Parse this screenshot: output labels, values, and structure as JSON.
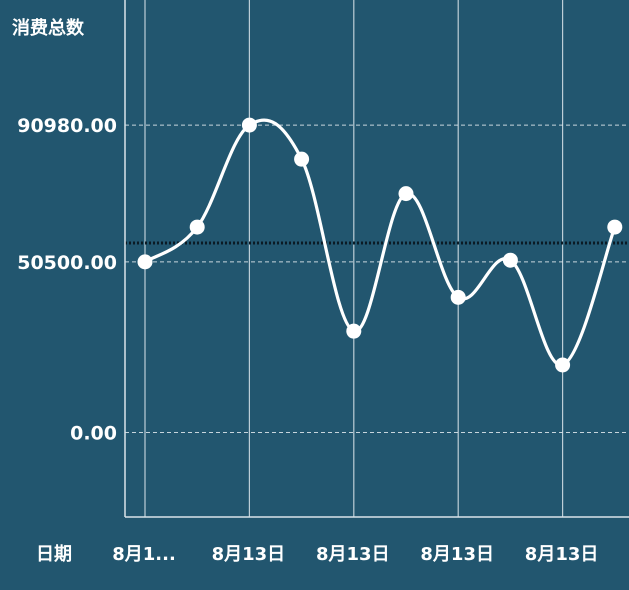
{
  "colors": {
    "background": "#22566f",
    "line": "#ffffff",
    "grid": "#d9e3ea",
    "reference_line": "#0b1a24"
  },
  "chart_data": {
    "type": "line",
    "ylabel": "消费总数",
    "xlabel": "日期",
    "y_ticks": [
      "90980.00",
      "50500.00",
      "0.00"
    ],
    "y_tick_values": [
      90980,
      50500,
      0
    ],
    "ylim": [
      -25000,
      128000
    ],
    "x_tick_labels": [
      "8月1...",
      "8月13日",
      "8月13日",
      "8月13日",
      "8月13日"
    ],
    "x_tick_indices": [
      0,
      2,
      4,
      6,
      8
    ],
    "series": [
      {
        "values": [
          50500,
          60800,
          90980,
          80900,
          30000,
          70700,
          40000,
          51000,
          20000,
          60800
        ]
      }
    ],
    "reference_line_value": 56100,
    "grid": true,
    "curve": "smooth"
  }
}
